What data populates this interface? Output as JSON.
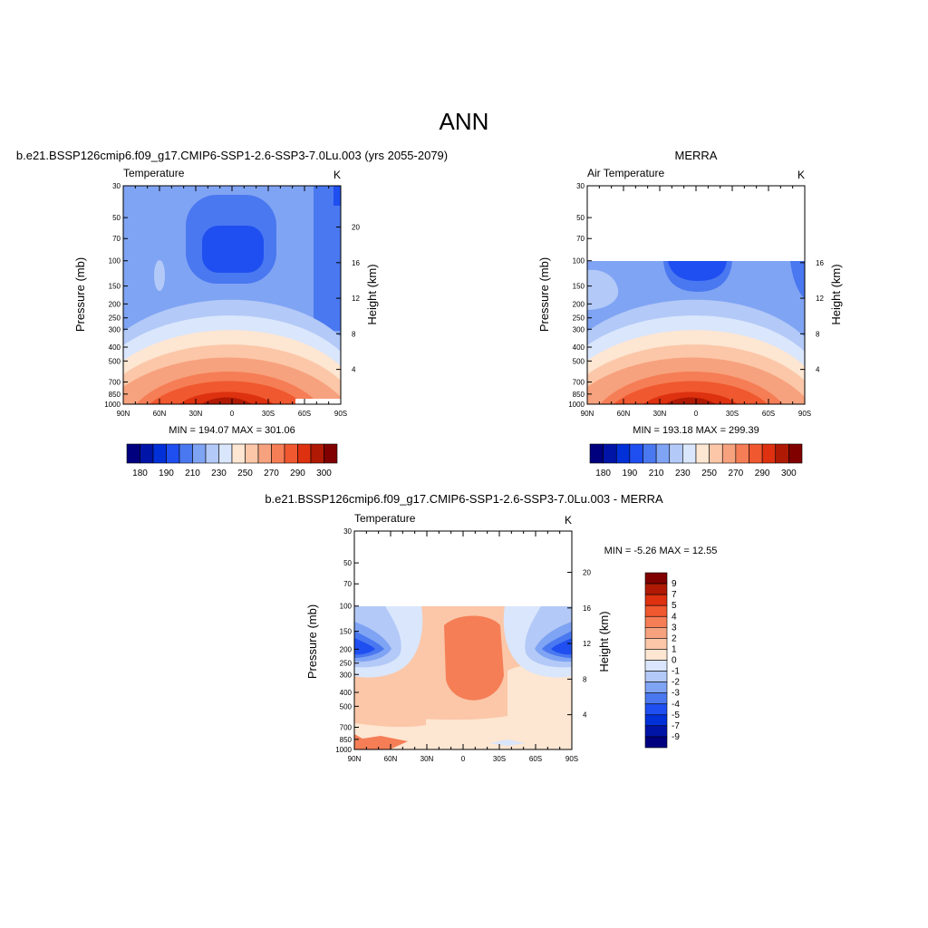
{
  "page": {
    "title": "ANN"
  },
  "colors": {
    "absolute_levels": [
      "#00007f",
      "#0014a8",
      "#0030d8",
      "#1f4ff0",
      "#4a78f0",
      "#80a4f4",
      "#b3c9f7",
      "#d9e6fc",
      "#fde6d2",
      "#fbc7a8",
      "#f7a27e",
      "#f57e56",
      "#f0582f",
      "#dd3110",
      "#b01a04",
      "#800000"
    ],
    "difference_levels": [
      "#00007f",
      "#0014a8",
      "#0030d8",
      "#1f4ff0",
      "#4a78f0",
      "#80a4f4",
      "#b3c9f7",
      "#d9e6fc",
      "#fde6d2",
      "#fbc7a8",
      "#f7a27e",
      "#f57e56",
      "#f0582f",
      "#dd3110",
      "#b01a04",
      "#800000"
    ]
  },
  "chart_data": [
    {
      "type": "heatmap",
      "title": "b.e21.BSSP126cmip6.f09_g17.CMIP6-SSP1-2.6-SSP3-7.0Lu.003 (yrs 2055-2079)",
      "left_label": "Temperature",
      "right_label": "K",
      "ylabel": "Pressure (mb)",
      "y2label": "Height (km)",
      "x_ticks": [
        "90N",
        "60N",
        "30N",
        "0",
        "30S",
        "60S",
        "90S"
      ],
      "y_ticks": [
        30,
        50,
        70,
        100,
        150,
        200,
        250,
        300,
        400,
        500,
        700,
        850,
        1000
      ],
      "y2_ticks": [
        20,
        16,
        12,
        8,
        4
      ],
      "ylim": [
        1000,
        30
      ],
      "stats_text": "MIN = 194.07  MAX = 301.06",
      "colorbar": {
        "orientation": "horizontal",
        "labels": [
          "180",
          "190",
          "210",
          "230",
          "250",
          "270",
          "290",
          "300"
        ]
      }
    },
    {
      "type": "heatmap",
      "title": "MERRA",
      "left_label": "Air Temperature",
      "right_label": "K",
      "ylabel": "Pressure (mb)",
      "y2label": "Height (km)",
      "x_ticks": [
        "90N",
        "60N",
        "30N",
        "0",
        "30S",
        "60S",
        "90S"
      ],
      "y_ticks": [
        30,
        50,
        70,
        100,
        150,
        200,
        250,
        300,
        400,
        500,
        700,
        850,
        1000
      ],
      "y2_ticks": [
        16,
        12,
        8,
        4
      ],
      "ylim": [
        1000,
        30
      ],
      "data_top_pressure": 100,
      "stats_text": "MIN = 193.18  MAX = 299.39",
      "colorbar": {
        "orientation": "horizontal",
        "labels": [
          "180",
          "190",
          "210",
          "230",
          "250",
          "270",
          "290",
          "300"
        ]
      }
    },
    {
      "type": "heatmap",
      "title": "b.e21.BSSP126cmip6.f09_g17.CMIP6-SSP1-2.6-SSP3-7.0Lu.003 - MERRA",
      "left_label": "Temperature",
      "right_label": "K",
      "ylabel": "Pressure (mb)",
      "y2label": "Height (km)",
      "x_ticks": [
        "90N",
        "60N",
        "30N",
        "0",
        "30S",
        "60S",
        "90S"
      ],
      "y_ticks": [
        30,
        50,
        70,
        100,
        150,
        200,
        250,
        300,
        400,
        500,
        700,
        850,
        1000
      ],
      "y2_ticks": [
        20,
        16,
        12,
        8,
        4
      ],
      "ylim": [
        1000,
        30
      ],
      "data_top_pressure": 100,
      "stats_text": "MIN =  -5.26  MAX =  12.55",
      "colorbar": {
        "orientation": "vertical",
        "labels": [
          "9",
          "7",
          "5",
          "4",
          "3",
          "2",
          "1",
          "0",
          "-1",
          "-2",
          "-3",
          "-4",
          "-5",
          "-7",
          "-9"
        ]
      }
    }
  ]
}
